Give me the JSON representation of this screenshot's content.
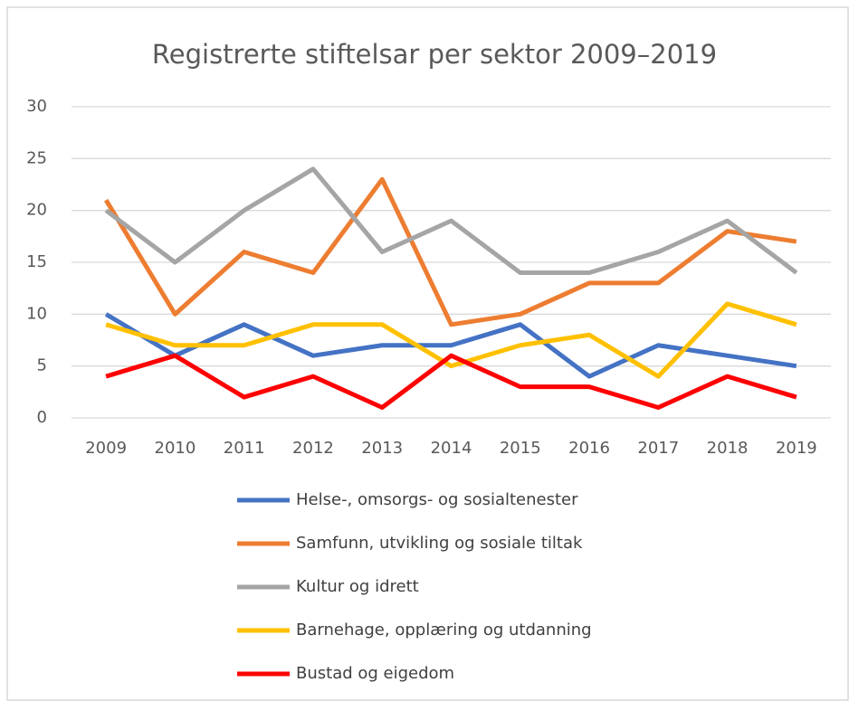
{
  "chart_data": {
    "type": "line",
    "title": "Registrerte stiftelsar per sektor 2009–2019",
    "categories": [
      "2009",
      "2010",
      "2011",
      "2012",
      "2013",
      "2014",
      "2015",
      "2016",
      "2017",
      "2018",
      "2019"
    ],
    "series": [
      {
        "name": "Helse-, omsorgs- og sosialtenester",
        "color": "#4472c4",
        "values": [
          10,
          6,
          9,
          6,
          7,
          7,
          9,
          4,
          7,
          6,
          5
        ]
      },
      {
        "name": "Samfunn, utvikling og sosiale tiltak",
        "color": "#ed7d31",
        "values": [
          21,
          10,
          16,
          14,
          23,
          9,
          10,
          13,
          13,
          18,
          17
        ]
      },
      {
        "name": "Kultur og idrett",
        "color": "#a5a5a5",
        "values": [
          20,
          15,
          20,
          24,
          16,
          19,
          14,
          14,
          16,
          19,
          14
        ]
      },
      {
        "name": "Barnehage, opplæring og utdanning",
        "color": "#ffc000",
        "values": [
          9,
          7,
          7,
          9,
          9,
          5,
          7,
          8,
          4,
          11,
          9
        ]
      },
      {
        "name": "Bustad og eigedom",
        "color": "#ff0000",
        "values": [
          4,
          6,
          2,
          4,
          1,
          6,
          3,
          3,
          1,
          4,
          2
        ]
      }
    ],
    "ylim": [
      0,
      30
    ],
    "yticks": [
      0,
      5,
      10,
      15,
      20,
      25,
      30
    ],
    "grid": true,
    "legend": "bottom"
  }
}
